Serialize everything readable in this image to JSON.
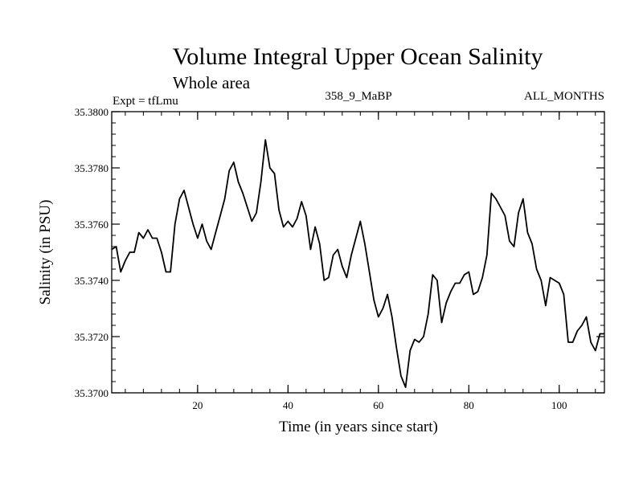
{
  "chart_data": {
    "type": "line",
    "title": "Volume Integral Upper Ocean Salinity",
    "subtitle": "Whole area",
    "experiment": "Expt = tfLmu",
    "run_id": "358_9_MaBP",
    "months": "ALL_MONTHS",
    "xlabel": "Time (in years since start)",
    "ylabel": "Salinity (in PSU)",
    "xlim": [
      1,
      110
    ],
    "ylim": [
      35.37,
      35.38
    ],
    "x_ticks": [
      20,
      40,
      60,
      80,
      100
    ],
    "y_ticks": [
      35.37,
      35.372,
      35.374,
      35.376,
      35.378,
      35.38
    ],
    "x_tick_labels": [
      "20",
      "40",
      "60",
      "80",
      "100"
    ],
    "y_tick_labels": [
      "35.3700",
      "35.3720",
      "35.3740",
      "35.3760",
      "35.3780",
      "35.3800"
    ],
    "series": [
      {
        "name": "Salinity",
        "color": "#000000",
        "x": [
          1,
          2,
          3,
          4,
          5,
          6,
          7,
          8,
          9,
          10,
          11,
          12,
          13,
          14,
          15,
          16,
          17,
          18,
          19,
          20,
          21,
          22,
          23,
          24,
          25,
          26,
          27,
          28,
          29,
          30,
          31,
          32,
          33,
          34,
          35,
          36,
          37,
          38,
          39,
          40,
          41,
          42,
          43,
          44,
          45,
          46,
          47,
          48,
          49,
          50,
          51,
          52,
          53,
          54,
          55,
          56,
          57,
          58,
          59,
          60,
          61,
          62,
          63,
          64,
          65,
          66,
          67,
          68,
          69,
          70,
          71,
          72,
          73,
          74,
          75,
          76,
          77,
          78,
          79,
          80,
          81,
          82,
          83,
          84,
          85,
          86,
          87,
          88,
          89,
          90,
          91,
          92,
          93,
          94,
          95,
          96,
          97,
          98,
          99,
          100,
          101,
          102,
          103,
          104,
          105,
          106,
          107,
          108,
          109,
          110
        ],
        "values": [
          35.3751,
          35.3752,
          35.3743,
          35.3747,
          35.375,
          35.375,
          35.3757,
          35.3755,
          35.3758,
          35.3755,
          35.3755,
          35.375,
          35.3743,
          35.3743,
          35.376,
          35.3769,
          35.3772,
          35.3766,
          35.376,
          35.3755,
          35.376,
          35.3754,
          35.3751,
          35.3757,
          35.3763,
          35.3769,
          35.3779,
          35.3782,
          35.3775,
          35.3771,
          35.3766,
          35.3761,
          35.3764,
          35.3775,
          35.379,
          35.378,
          35.3778,
          35.3765,
          35.3759,
          35.3761,
          35.3759,
          35.3762,
          35.3768,
          35.3763,
          35.3751,
          35.3759,
          35.3753,
          35.374,
          35.3741,
          35.3749,
          35.3751,
          35.3745,
          35.3741,
          35.3749,
          35.3755,
          35.3761,
          35.3753,
          35.3743,
          35.3733,
          35.3727,
          35.373,
          35.3735,
          35.3727,
          35.3716,
          35.3706,
          35.3702,
          35.3715,
          35.3719,
          35.3718,
          35.372,
          35.3728,
          35.3742,
          35.374,
          35.3725,
          35.3732,
          35.3736,
          35.3739,
          35.3739,
          35.3742,
          35.3743,
          35.3735,
          35.3736,
          35.3741,
          35.3749,
          35.3771,
          35.3769,
          35.3766,
          35.3763,
          35.3754,
          35.3752,
          35.3764,
          35.3769,
          35.3757,
          35.3753,
          35.3744,
          35.374,
          35.3731,
          35.3741,
          35.374,
          35.3739,
          35.3735,
          35.3718,
          35.3718,
          35.3722,
          35.3724,
          35.3727,
          35.3718,
          35.3715,
          35.3721,
          35.3721
        ]
      }
    ]
  }
}
